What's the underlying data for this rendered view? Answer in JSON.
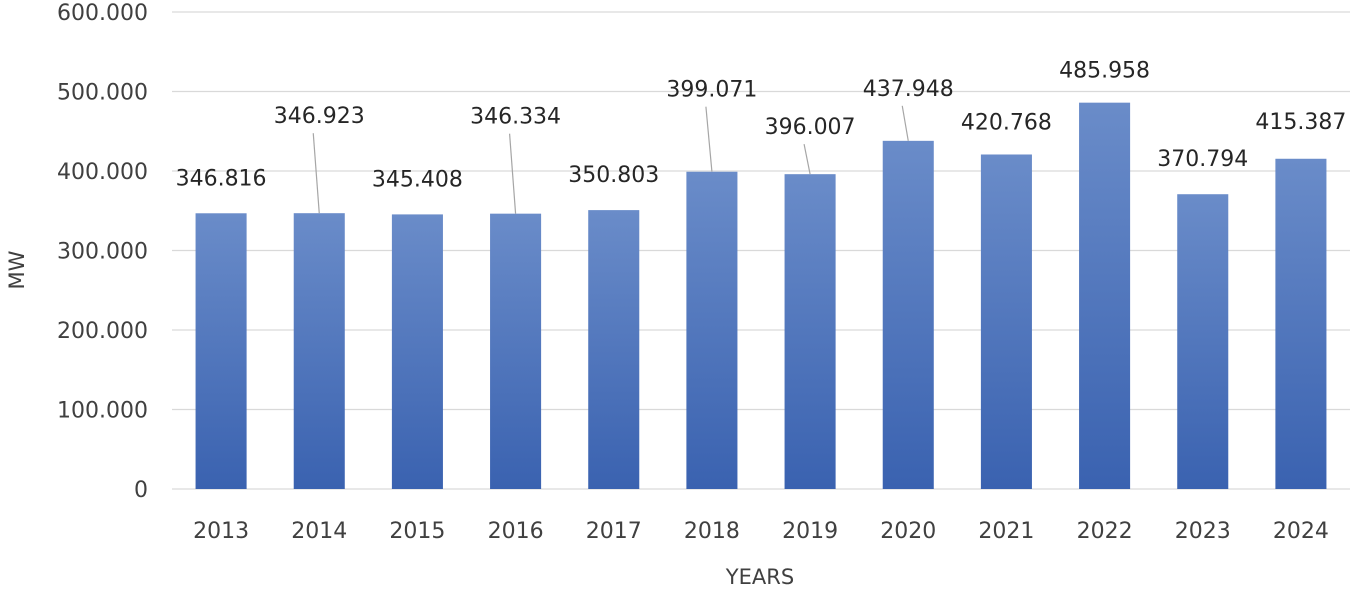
{
  "chart_data": {
    "type": "bar",
    "xlabel": "YEARS",
    "ylabel": "MW",
    "categories": [
      "2013",
      "2014",
      "2015",
      "2016",
      "2017",
      "2018",
      "2019",
      "2020",
      "2021",
      "2022",
      "2023",
      "2024"
    ],
    "values": [
      346816,
      346923,
      345408,
      346334,
      350803,
      399071,
      396007,
      437948,
      420768,
      485958,
      370794,
      415387
    ],
    "value_labels": [
      "346.816",
      "346.923",
      "345.408",
      "346.334",
      "350.803",
      "399.071",
      "396.007",
      "437.948",
      "420.768",
      "485.958",
      "370.794",
      "415.387"
    ],
    "ylim": [
      0,
      600000
    ],
    "yticks": [
      0,
      100000,
      200000,
      300000,
      400000,
      500000,
      600000
    ],
    "ytick_labels": [
      "0",
      "100.000",
      "200.000",
      "300.000",
      "400.000",
      "500.000",
      "600.000"
    ],
    "grid": true,
    "legend": "none",
    "bar_color_top": "#6a8cc9",
    "bar_color_bottom": "#3a62b0"
  }
}
